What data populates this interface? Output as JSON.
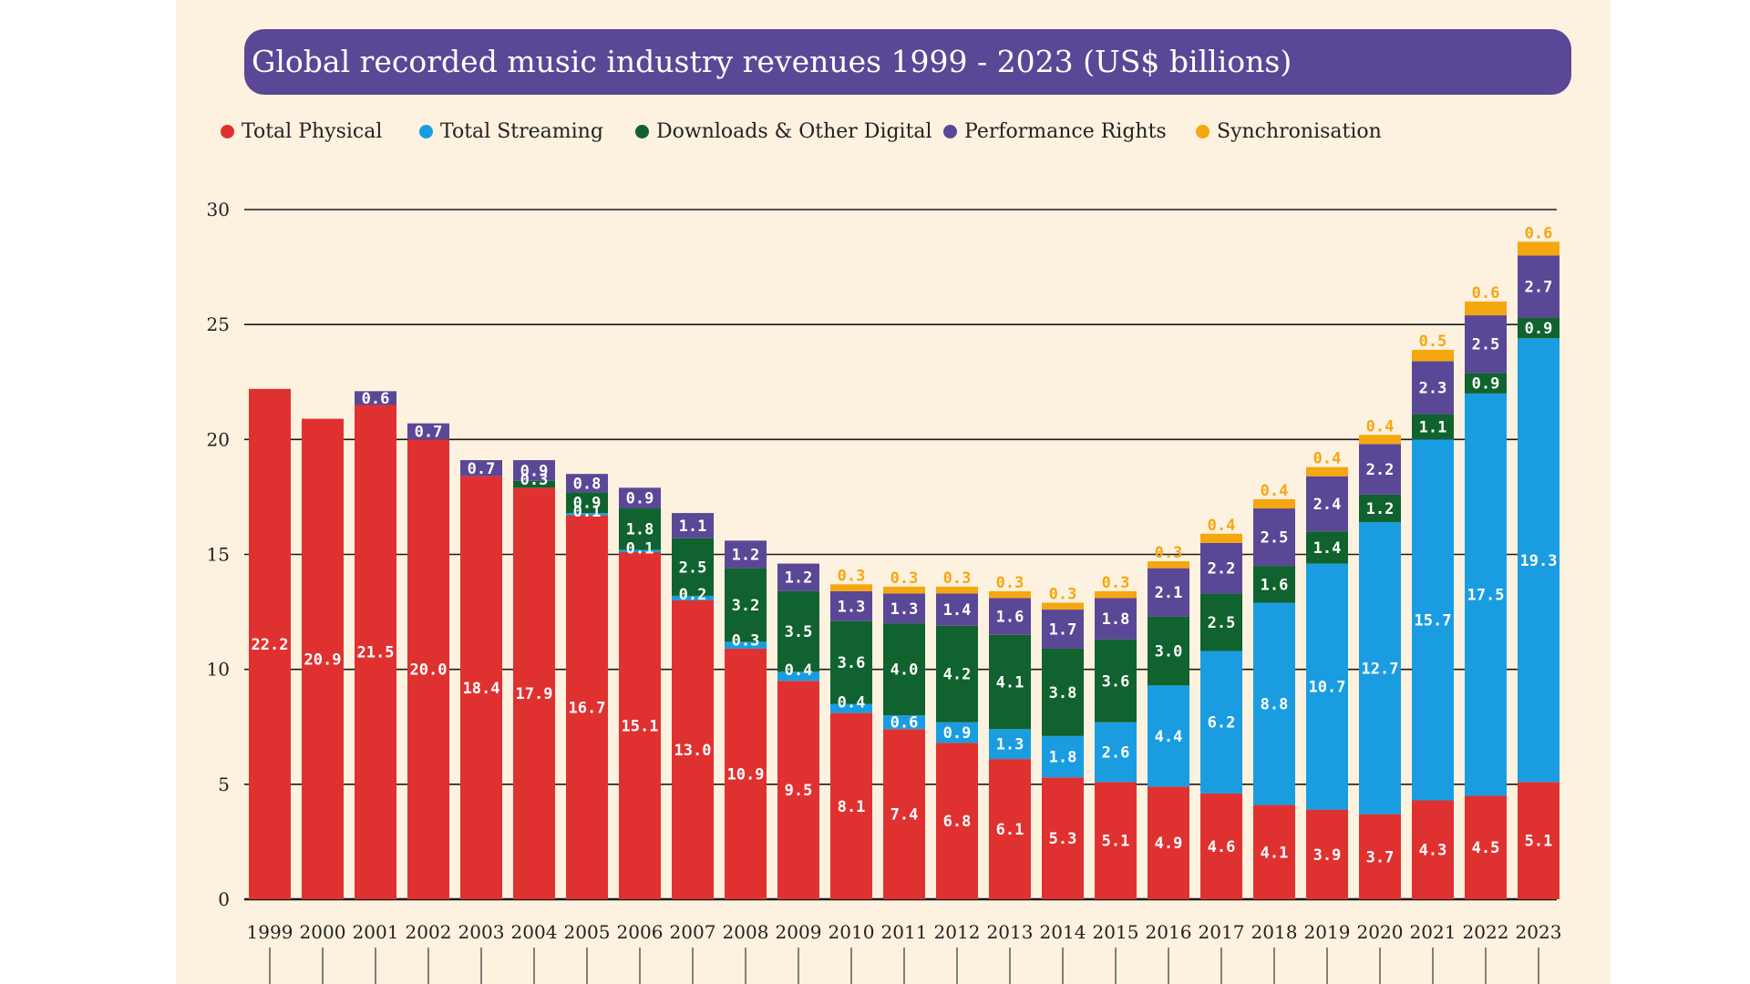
{
  "chart_data": {
    "type": "bar",
    "stacked": true,
    "title": "Global recorded music industry revenues 1999 - 2023 (US$ billions)",
    "ylim": [
      0,
      30
    ],
    "yticks": [
      0,
      5,
      10,
      15,
      20,
      25,
      30
    ],
    "categories": [
      "1999",
      "2000",
      "2001",
      "2002",
      "2003",
      "2004",
      "2005",
      "2006",
      "2007",
      "2008",
      "2009",
      "2010",
      "2011",
      "2012",
      "2013",
      "2014",
      "2015",
      "2016",
      "2017",
      "2018",
      "2019",
      "2020",
      "2021",
      "2022",
      "2023"
    ],
    "series": [
      {
        "name": "Total Physical",
        "color": "#e03131",
        "values": [
          22.2,
          20.9,
          21.5,
          20.0,
          18.4,
          17.9,
          16.7,
          15.1,
          13.0,
          10.9,
          9.5,
          8.1,
          7.4,
          6.8,
          6.1,
          5.3,
          5.1,
          4.9,
          4.6,
          4.1,
          3.9,
          3.7,
          4.3,
          4.5,
          5.1
        ],
        "labels": [
          "22.2",
          "20.9",
          "21.5",
          "20.0",
          "18.4",
          "17.9",
          "16.7",
          "15.1",
          "13.0",
          "10.9",
          "9.5",
          "8.1",
          "7.4",
          "6.8",
          "6.1",
          "5.3",
          "5.1",
          "4.9",
          "4.6",
          "4.1",
          "3.9",
          "3.7",
          "4.3",
          "4.5",
          "5.1"
        ]
      },
      {
        "name": "Total Streaming",
        "color": "#1a9de0",
        "values": [
          0,
          0,
          0,
          0,
          0,
          0,
          0.1,
          0.1,
          0.2,
          0.3,
          0.4,
          0.4,
          0.6,
          0.9,
          1.3,
          1.8,
          2.6,
          4.4,
          6.2,
          8.8,
          10.7,
          12.7,
          15.7,
          17.5,
          19.3
        ],
        "labels": [
          "",
          "",
          "",
          "",
          "",
          "",
          "0.1",
          "0.1",
          "0.2",
          "0.3",
          "0.4",
          "0.4",
          "0.6",
          "0.9",
          "1.3",
          "1.8",
          "2.6",
          "4.4",
          "6.2",
          "8.8",
          "10.7",
          "12.7",
          "15.7",
          "17.5",
          "19.3"
        ]
      },
      {
        "name": "Downloads & Other Digital",
        "color": "#10622e",
        "values": [
          0,
          0,
          0,
          0,
          0,
          0.3,
          0.9,
          1.8,
          2.5,
          3.2,
          3.5,
          3.6,
          4.0,
          4.2,
          4.1,
          3.8,
          3.6,
          3.0,
          2.5,
          1.6,
          1.4,
          1.2,
          1.1,
          0.9,
          0.9
        ],
        "labels": [
          "",
          "",
          "",
          "",
          "",
          "0.3",
          "0.9",
          "1.8",
          "2.5",
          "3.2",
          "3.5",
          "3.6",
          "4.0",
          "4.2",
          "4.1",
          "3.8",
          "3.6",
          "3.0",
          "2.5",
          "1.6",
          "1.4",
          "1.2",
          "1.1",
          "0.9",
          "0.9"
        ]
      },
      {
        "name": "Performance Rights",
        "color": "#5a4796",
        "values": [
          0,
          0,
          0.6,
          0.7,
          0.7,
          0.9,
          0.8,
          0.9,
          1.1,
          1.2,
          1.2,
          1.3,
          1.3,
          1.4,
          1.6,
          1.7,
          1.8,
          2.1,
          2.2,
          2.5,
          2.4,
          2.2,
          2.3,
          2.5,
          2.7
        ],
        "labels": [
          "",
          "",
          "0.6",
          "0.7",
          "0.7",
          "0.9",
          "0.8",
          "0.9",
          "1.1",
          "1.2",
          "1.2",
          "1.3",
          "1.3",
          "1.4",
          "1.6",
          "1.7",
          "1.8",
          "2.1",
          "2.2",
          "2.5",
          "2.4",
          "2.2",
          "2.3",
          "2.5",
          "2.7"
        ]
      },
      {
        "name": "Synchronisation",
        "color": "#f5a70f",
        "values": [
          0,
          0,
          0,
          0,
          0,
          0,
          0,
          0,
          0,
          0,
          0,
          0.3,
          0.3,
          0.3,
          0.3,
          0.3,
          0.3,
          0.3,
          0.4,
          0.4,
          0.4,
          0.4,
          0.5,
          0.6,
          0.6
        ],
        "labels": [
          "",
          "",
          "",
          "",
          "",
          "",
          "",
          "",
          "",
          "",
          "",
          "0.3",
          "0.3",
          "0.3",
          "0.3",
          "0.3",
          "0.3",
          "0.3",
          "0.4",
          "0.4",
          "0.4",
          "0.4",
          "0.5",
          "0.6",
          "0.6"
        ]
      }
    ]
  }
}
